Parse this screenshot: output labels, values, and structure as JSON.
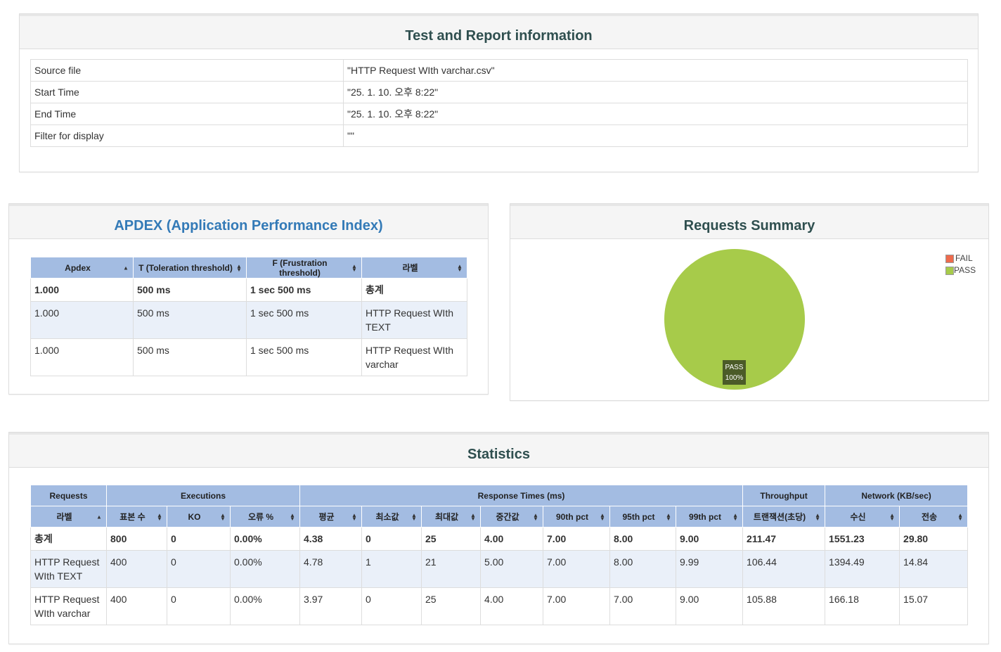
{
  "report_info": {
    "title": "Test and Report information",
    "rows": [
      {
        "label": "Source file",
        "value": "\"HTTP Request WIth varchar.csv\""
      },
      {
        "label": "Start Time",
        "value": "\"25. 1. 10. 오후 8:22\""
      },
      {
        "label": "End Time",
        "value": "\"25. 1. 10. 오후 8:22\""
      },
      {
        "label": "Filter for display",
        "value": "\"\""
      }
    ]
  },
  "apdex": {
    "title": "APDEX (Application Performance Index)",
    "headers": [
      "Apdex",
      "T (Toleration threshold)",
      "F (Frustration threshold)",
      "라벨"
    ],
    "rows": [
      {
        "apdex": "1.000",
        "t": "500 ms",
        "f": "1 sec 500 ms",
        "label": "총계"
      },
      {
        "apdex": "1.000",
        "t": "500 ms",
        "f": "1 sec 500 ms",
        "label": "HTTP Request WIth TEXT"
      },
      {
        "apdex": "1.000",
        "t": "500 ms",
        "f": "1 sec 500 ms",
        "label": "HTTP Request WIth varchar"
      }
    ]
  },
  "requests_summary": {
    "title": "Requests Summary",
    "legend": [
      {
        "name": "FAIL",
        "color": "#ee6b4d"
      },
      {
        "name": "PASS",
        "color": "#a7cb4a"
      }
    ],
    "chart_data": {
      "type": "pie",
      "slices": [
        {
          "name": "PASS",
          "value": 100,
          "label": "PASS",
          "percent_label": "100%"
        }
      ],
      "colors": {
        "PASS": "#a7cb4a",
        "FAIL": "#ee6b4d"
      }
    }
  },
  "statistics": {
    "title": "Statistics",
    "groups": [
      {
        "label": "Requests"
      },
      {
        "label": "Executions"
      },
      {
        "label": "Response Times (ms)"
      },
      {
        "label": "Throughput"
      },
      {
        "label": "Network (KB/sec)"
      }
    ],
    "headers": [
      "라벨",
      "표본 수",
      "KO",
      "오류 %",
      "평균",
      "최소값",
      "최대값",
      "중간값",
      "90th pct",
      "95th pct",
      "99th pct",
      "트랜잭션(초당)",
      "수신",
      "전송"
    ],
    "rows": [
      [
        "총계",
        "800",
        "0",
        "0.00%",
        "4.38",
        "0",
        "25",
        "4.00",
        "7.00",
        "8.00",
        "9.00",
        "211.47",
        "1551.23",
        "29.80"
      ],
      [
        "HTTP Request WIth TEXT",
        "400",
        "0",
        "0.00%",
        "4.78",
        "1",
        "21",
        "5.00",
        "7.00",
        "8.00",
        "9.99",
        "106.44",
        "1394.49",
        "14.84"
      ],
      [
        "HTTP Request WIth varchar",
        "400",
        "0",
        "0.00%",
        "3.97",
        "0",
        "25",
        "4.00",
        "7.00",
        "7.00",
        "9.00",
        "105.88",
        "166.18",
        "15.07"
      ]
    ]
  }
}
